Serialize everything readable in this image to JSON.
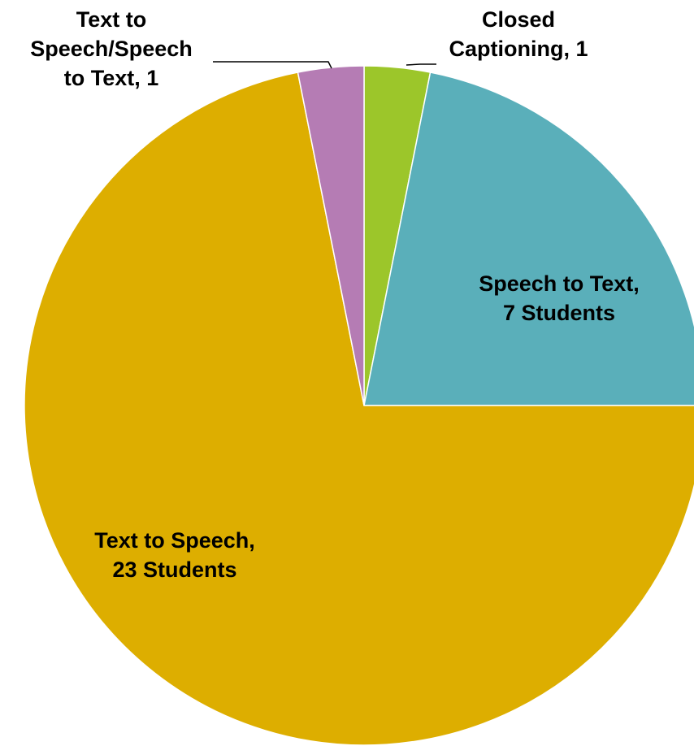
{
  "chart_data": {
    "type": "pie",
    "title": "",
    "slices": [
      {
        "category": "Closed Captioning",
        "value": 1,
        "label_lines": [
          "Closed",
          "Captioning, 1"
        ],
        "color": "#9CC62A"
      },
      {
        "category": "Speech to Text",
        "value": 7,
        "label_lines": [
          "Speech to Text,",
          "7 Students"
        ],
        "color": "#5AAFBA"
      },
      {
        "category": "Text to Speech",
        "value": 23,
        "label_lines": [
          "Text to Speech,",
          "23 Students"
        ],
        "color": "#DDAE00"
      },
      {
        "category": "Text to Speech/Speech to Text",
        "value": 1,
        "label_lines": [
          "Text to",
          "Speech/Speech",
          "to Text, 1"
        ],
        "color": "#B57CB4"
      }
    ],
    "start_angle_deg": 0,
    "direction": "clockwise",
    "legend": "none"
  }
}
